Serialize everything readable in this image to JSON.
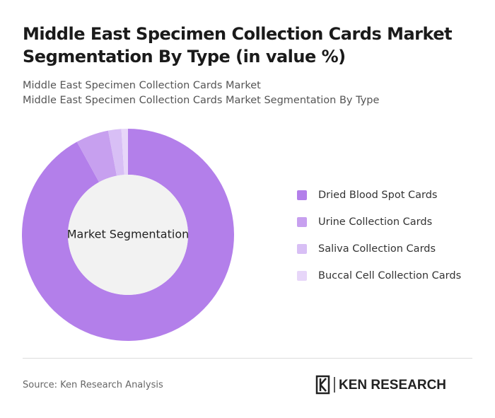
{
  "chart_data": {
    "type": "donut",
    "title": "Middle East Specimen Collection Cards Market Segmentation By Type (in value %)",
    "subtitle": "Middle East Specimen Collection Cards Market",
    "subtitle2": "Middle East Specimen Collection Cards Market Segmentation By Type",
    "center_label": "Market Segmentation",
    "categories": [
      "Dried Blood Spot Cards",
      "Urine Collection Cards",
      "Saliva Collection Cards",
      "Buccal Cell Collection Cards"
    ],
    "values": [
      92,
      5,
      2,
      1
    ],
    "colors": [
      "#b37fea",
      "#c7a0ef",
      "#d8bff5",
      "#e7d6f9"
    ],
    "legend": "right",
    "source": "Source: Ken Research Analysis",
    "logo": "KEN RESEARCH"
  }
}
